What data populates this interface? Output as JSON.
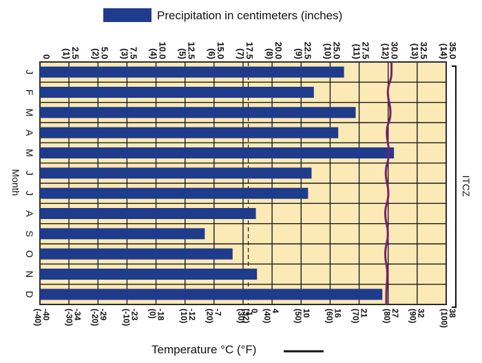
{
  "chart_data": {
    "type": "bar",
    "orientation": "horizontal",
    "legend": {
      "precip_label": "Precipitation in centimeters (inches)",
      "temp_label": "Temperature °C (°F)"
    },
    "colors": {
      "bar": "#1f3b8c",
      "temp_line": "#7a1f6e",
      "plot_bg": "#fbe9b6",
      "grid": "#1a1a1a",
      "frame": "#2a2a2a"
    },
    "precip_axis": {
      "min": 0,
      "max": 35,
      "ticks": [
        {
          "cm": "0",
          "in": ""
        },
        {
          "cm": "2.5",
          "in": "(1)"
        },
        {
          "cm": "5.0",
          "in": "(2)"
        },
        {
          "cm": "7.5",
          "in": "(3)"
        },
        {
          "cm": "10.0",
          "in": "(4)"
        },
        {
          "cm": "12.5",
          "in": "(5)"
        },
        {
          "cm": "15.0",
          "in": "(6)"
        },
        {
          "cm": "17.5",
          "in": "(7)"
        },
        {
          "cm": "20.0",
          "in": "(8)"
        },
        {
          "cm": "22.5",
          "in": "(9)"
        },
        {
          "cm": "25.0",
          "in": "(10)"
        },
        {
          "cm": "27.5",
          "in": "(11)"
        },
        {
          "cm": "30.0",
          "in": "(12)"
        },
        {
          "cm": "32.5",
          "in": "(13)"
        },
        {
          "cm": "35.0",
          "in": "(14)"
        }
      ]
    },
    "temp_axis": {
      "min": -40,
      "max": 38,
      "ticks": [
        {
          "c": "-40",
          "f": "(-40)"
        },
        {
          "c": "-34",
          "f": "(-30)"
        },
        {
          "c": "-29",
          "f": "(-20)"
        },
        {
          "c": "-23",
          "f": "(-10)"
        },
        {
          "c": "-18",
          "f": "(0)"
        },
        {
          "c": "-12",
          "f": "(10)"
        },
        {
          "c": "-7",
          "f": "(20)"
        },
        {
          "c": "-1",
          "f": "(30)"
        },
        {
          "c": "0",
          "f": "(32)"
        },
        {
          "c": "4",
          "f": "(40)"
        },
        {
          "c": "10",
          "f": "(50)"
        },
        {
          "c": "16",
          "f": "(60)"
        },
        {
          "c": "21",
          "f": "(70)"
        },
        {
          "c": "27",
          "f": "(80)"
        },
        {
          "c": "32",
          "f": "(90)"
        },
        {
          "c": "38",
          "f": "(100)"
        }
      ]
    },
    "xlabel": "Month",
    "region_label": "ITCZ",
    "categories": [
      "J",
      "F",
      "M",
      "A",
      "M",
      "J",
      "J",
      "A",
      "S",
      "O",
      "N",
      "D"
    ],
    "series": [
      {
        "values": [
          26.2,
          23.6,
          27.2,
          25.7,
          30.5,
          23.4,
          23.1,
          18.6,
          14.2,
          16.6,
          18.7,
          29.5
        ]
      }
    ],
    "temperature": [
      27.5,
      26.8,
      27.3,
      26.6,
      27.0,
      26.4,
      26.9,
      26.3,
      26.8,
      26.3,
      26.7,
      26.5
    ]
  }
}
